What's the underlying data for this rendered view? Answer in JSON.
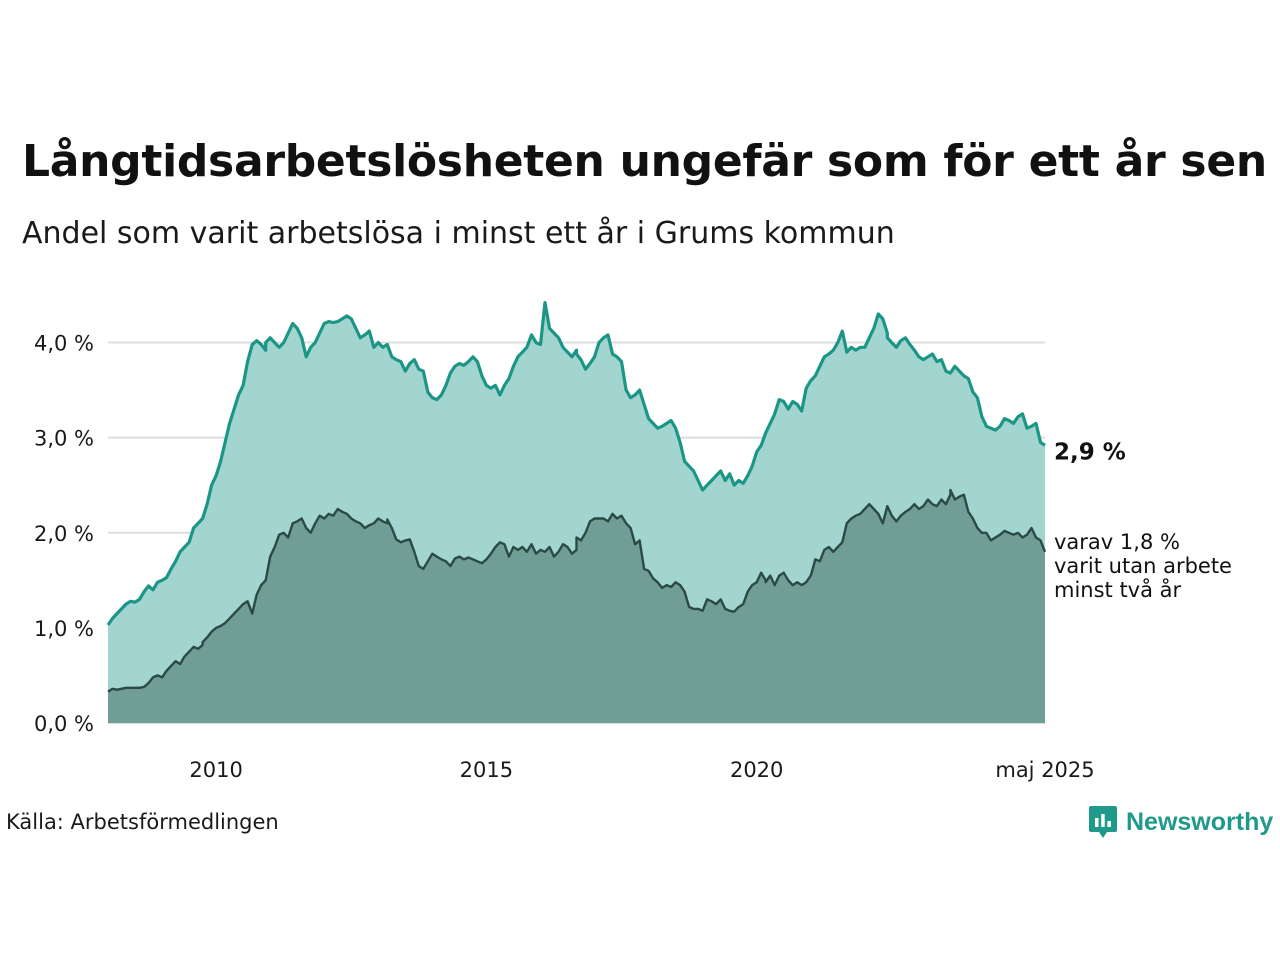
{
  "title": "Långtidsarbetslösheten ungefär som för ett år sen",
  "subtitle": "Andel som varit arbetslösa i minst ett år i Grums kommun",
  "source": "Källa: Arbetsförmedlingen",
  "brand": {
    "name": "Newsworthy",
    "icon": "newsworthy-logo-icon",
    "color": "#1f9a8a"
  },
  "colors": {
    "series1_line": "#1b9686",
    "series1_fill": "#a3d5d0",
    "series2_line": "#2b4a45",
    "series2_fill": "#709e96",
    "grid": "#dddddd"
  },
  "chart_data": {
    "type": "area",
    "x_start": "2008-01",
    "x_end": "2025-05",
    "x_interval": "month",
    "ylim": [
      0,
      4.5
    ],
    "y_ticks": [
      0,
      1,
      2,
      3,
      4
    ],
    "y_tick_labels": [
      "0,0 %",
      "1,0 %",
      "2,0 %",
      "3,0 %",
      "4,0 %"
    ],
    "x_tick_labels": [
      {
        "x": "2010-01",
        "label": "2010"
      },
      {
        "x": "2015-01",
        "label": "2015"
      },
      {
        "x": "2020-01",
        "label": "2020"
      },
      {
        "x": "2025-05",
        "label": "maj 2025"
      }
    ],
    "end_labels": {
      "series1": "2,9 %",
      "series2": [
        "varav 1,8 %",
        "varit utan arbete",
        "minst två år"
      ]
    },
    "series": [
      {
        "values": [
          1.03,
          1.1,
          1.15,
          1.2,
          1.25,
          1.28,
          1.27,
          1.3,
          1.38,
          1.44,
          1.4,
          1.48,
          1.5,
          1.53,
          1.62,
          1.7,
          1.8,
          1.85,
          1.9,
          2.05,
          2.1,
          2.15,
          2.3,
          2.5,
          2.6,
          2.75,
          2.95,
          3.15,
          3.3,
          3.45,
          3.55,
          3.8,
          3.98,
          4.02,
          3.98,
          3.92,
          4.0,
          4.05,
          4.0,
          3.95,
          4.0,
          4.1,
          4.2,
          4.15,
          4.05,
          3.85,
          3.95,
          4.0,
          4.1,
          4.2,
          4.22,
          4.21,
          4.22,
          4.25,
          4.28,
          4.25,
          4.15,
          4.05,
          4.08,
          4.12,
          3.95,
          4.0,
          3.95,
          3.98,
          3.85,
          3.82,
          3.8,
          3.7,
          3.78,
          3.82,
          3.72,
          3.7,
          3.48,
          3.42,
          3.4,
          3.45,
          3.55,
          3.68,
          3.75,
          3.78,
          3.76,
          3.8,
          3.85,
          3.8,
          3.65,
          3.55,
          3.52,
          3.55,
          3.45,
          3.55,
          3.62,
          3.75,
          3.85,
          3.9,
          3.95,
          4.08,
          4.0,
          3.98,
          4.42,
          4.15,
          4.1,
          4.05,
          3.95,
          3.9,
          3.85,
          3.92,
          3.88,
          3.82,
          3.72,
          3.78,
          3.85,
          4.0,
          4.05,
          4.08,
          3.88,
          3.85,
          3.8,
          3.5,
          3.42,
          3.45,
          3.5,
          3.35,
          3.2,
          3.15,
          3.1,
          3.12,
          3.15,
          3.18,
          3.1,
          2.95,
          2.75,
          2.7,
          2.65,
          2.55,
          2.45,
          2.5,
          2.55,
          2.6,
          2.65,
          2.55,
          2.62,
          2.5,
          2.55,
          2.52,
          2.6,
          2.7,
          2.85,
          2.92,
          3.05,
          3.15,
          3.25,
          3.4,
          3.38,
          3.3,
          3.38,
          3.35,
          3.28,
          3.52,
          3.6,
          3.65,
          3.75,
          3.85,
          3.88,
          3.92,
          4.0,
          4.12,
          3.9,
          3.95,
          3.92,
          3.95,
          3.95,
          4.05,
          4.15,
          4.3,
          4.25,
          4.1,
          4.05,
          4.0,
          3.95,
          4.02,
          4.05,
          3.98,
          3.92,
          3.85,
          3.82,
          3.85,
          3.88,
          3.8,
          3.82,
          3.7,
          3.68,
          3.75,
          3.7,
          3.65,
          3.62,
          3.48,
          3.42,
          3.22,
          3.12,
          3.1,
          3.08,
          3.12,
          3.2,
          3.18,
          3.15,
          3.22,
          3.25,
          3.1,
          3.12,
          3.15,
          2.95,
          2.92
        ]
      },
      {
        "values": [
          0.33,
          0.36,
          0.35,
          0.36,
          0.37,
          0.37,
          0.37,
          0.37,
          0.38,
          0.42,
          0.48,
          0.5,
          0.48,
          0.55,
          0.6,
          0.65,
          0.62,
          0.7,
          0.75,
          0.8,
          0.78,
          0.82,
          0.85,
          0.9,
          0.96,
          1.0,
          1.02,
          1.05,
          1.1,
          1.15,
          1.2,
          1.25,
          1.28,
          1.15,
          1.35,
          1.45,
          1.5,
          1.75,
          1.85,
          1.98,
          2.0,
          1.95,
          2.1,
          2.12,
          2.15,
          2.05,
          2.0,
          2.1,
          2.18,
          2.15,
          2.2,
          2.18,
          2.25,
          2.22,
          2.2,
          2.15,
          2.12,
          2.1,
          2.05,
          2.08,
          2.1,
          2.15,
          2.12,
          2.1,
          2.14,
          2.05,
          1.93,
          1.9,
          1.92,
          1.93,
          1.8,
          1.65,
          1.62,
          1.7,
          1.78,
          1.75,
          1.72,
          1.7,
          1.65,
          1.73,
          1.75,
          1.72,
          1.74,
          1.72,
          1.7,
          1.68,
          1.72,
          1.78,
          1.85,
          1.9,
          1.88,
          1.75,
          1.85,
          1.82,
          1.85,
          1.8,
          1.88,
          1.78,
          1.82,
          1.8,
          1.85,
          1.75,
          1.8,
          1.88,
          1.85,
          1.78,
          1.82,
          1.95,
          1.92,
          2.0,
          2.12,
          2.15,
          2.15,
          2.15,
          2.12,
          2.2,
          2.15,
          2.18,
          2.1,
          2.05,
          1.88,
          1.92,
          1.62,
          1.6,
          1.52,
          1.48,
          1.42,
          1.45,
          1.43,
          1.48,
          1.45,
          1.38,
          1.22,
          1.2,
          1.2,
          1.18,
          1.3,
          1.28,
          1.25,
          1.3,
          1.2,
          1.18,
          1.17,
          1.22,
          1.25,
          1.38,
          1.45,
          1.48,
          1.58,
          1.5,
          1.48,
          1.55,
          1.45,
          1.55,
          1.58,
          1.5,
          1.45,
          1.48,
          1.45,
          1.48,
          1.55,
          1.72,
          1.7,
          1.82,
          1.85,
          1.8,
          1.85,
          1.9,
          2.1,
          2.15,
          2.18,
          2.2,
          2.25,
          2.3,
          2.25,
          2.2,
          2.1,
          2.28,
          2.18,
          2.12,
          2.18,
          2.22,
          2.25,
          2.3,
          2.25,
          2.28,
          2.35,
          2.3,
          2.28,
          2.35,
          2.3,
          2.4,
          2.45,
          2.35,
          2.38,
          2.4,
          2.22,
          2.15,
          2.05,
          2.0,
          2.0,
          1.92,
          1.95,
          1.98,
          2.02,
          2.0,
          1.98,
          2.0,
          1.95,
          1.98,
          2.05,
          1.95,
          1.92,
          1.8
        ]
      }
    ]
  }
}
